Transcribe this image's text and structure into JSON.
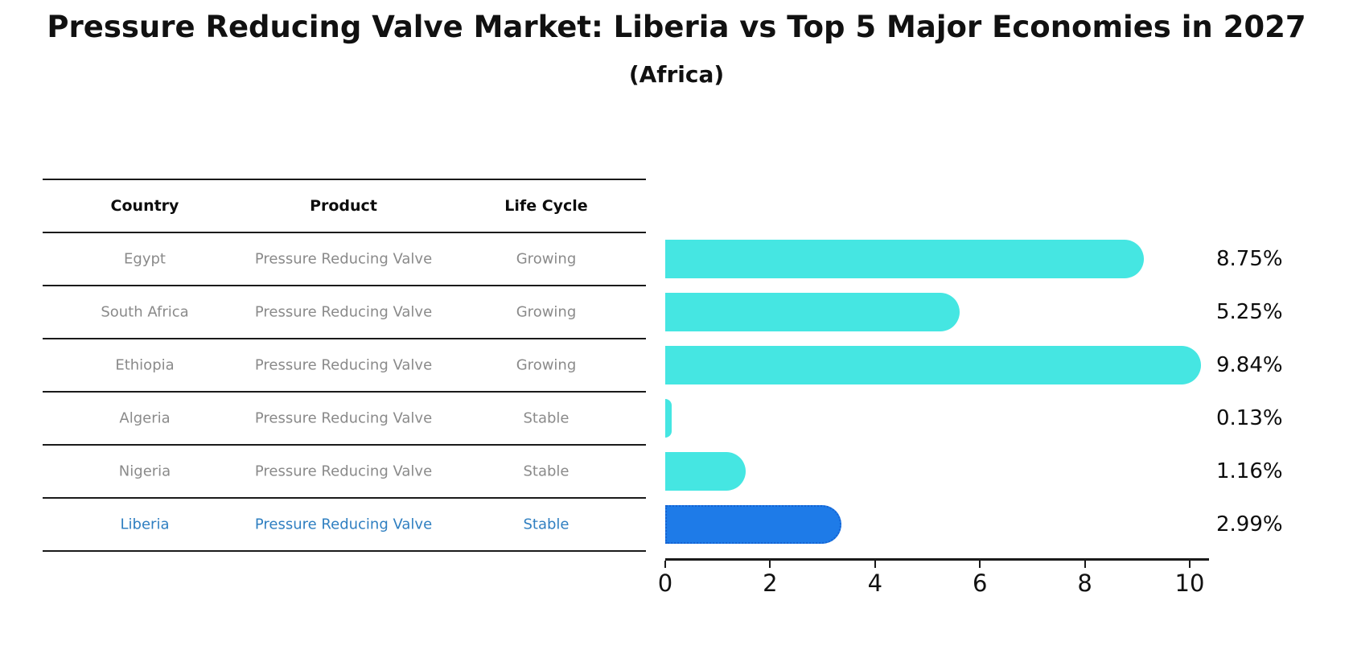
{
  "header": {
    "title": "Pressure Reducing Valve Market: Liberia vs Top 5 Major Economies in 2027",
    "subtitle": "(Africa)"
  },
  "table": {
    "columns": [
      "Country",
      "Product",
      "Life Cycle"
    ],
    "rows": [
      {
        "country": "Egypt",
        "product": "Pressure Reducing Valve",
        "life_cycle": "Growing",
        "highlight": false
      },
      {
        "country": "South Africa",
        "product": "Pressure Reducing Valve",
        "life_cycle": "Growing",
        "highlight": false
      },
      {
        "country": "Ethiopia",
        "product": "Pressure Reducing Valve",
        "life_cycle": "Growing",
        "highlight": false
      },
      {
        "country": "Algeria",
        "product": "Pressure Reducing Valve",
        "life_cycle": "Stable",
        "highlight": false
      },
      {
        "country": "Nigeria",
        "product": "Pressure Reducing Valve",
        "life_cycle": "Stable",
        "highlight": false
      },
      {
        "country": "Liberia",
        "product": "Pressure Reducing Valve",
        "life_cycle": "Stable",
        "highlight": true
      }
    ]
  },
  "chart_data": {
    "type": "bar",
    "orientation": "horizontal",
    "title": "Pressure Reducing Valve Market: Liberia vs Top 5 Major Economies in 2027",
    "subtitle": "(Africa)",
    "categories": [
      "Egypt",
      "South Africa",
      "Ethiopia",
      "Algeria",
      "Nigeria",
      "Liberia"
    ],
    "values": [
      8.75,
      5.25,
      9.84,
      0.13,
      1.16,
      2.99
    ],
    "value_labels": [
      "8.75%",
      "5.25%",
      "9.84%",
      "0.13%",
      "1.16%",
      "2.99%"
    ],
    "xlim": [
      0,
      10
    ],
    "xticks": [
      "0",
      "2",
      "4",
      "6",
      "8",
      "10"
    ],
    "grid": false,
    "legend": false,
    "highlight_index": 5
  },
  "colors": {
    "bar": "#45e6e2",
    "highlight_bar": "#1e7be8",
    "highlight_border": "#1563d2",
    "highlight_text": "#2f7fc1",
    "row_text": "#8a8a8a",
    "header_text": "#0d0d0d",
    "line": "#1a1a1a"
  }
}
